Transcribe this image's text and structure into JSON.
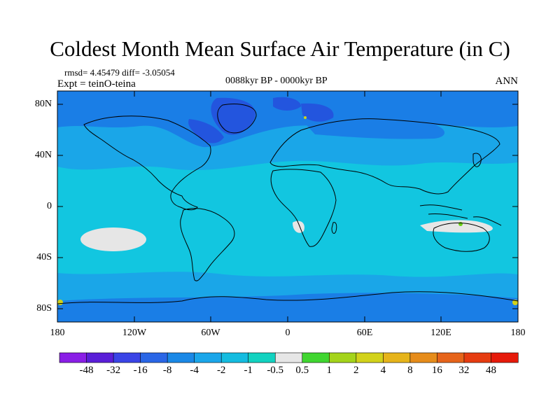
{
  "title": "Coldest Month Mean Surface Air Temperature (in C)",
  "stats": "rmsd= 4.45479 diff= -3.05054",
  "experiment": "Expt = teinO-teina",
  "period": "0088kyr BP - 0000kyr BP",
  "season": "ANN",
  "map": {
    "lat_ticks": [
      "80N",
      "40N",
      "0",
      "40S",
      "80S"
    ],
    "lon_ticks": [
      "180",
      "120W",
      "60W",
      "0",
      "60E",
      "120E",
      "180"
    ],
    "colors": {
      "ocean_base": "#12c6e0",
      "cool_band": "#1aa6e8",
      "cold_region": "#1a7ee6",
      "very_cold": "#2355de",
      "near_zero": "#e6e6e6",
      "warm": "#6ad014",
      "coast": "#000000"
    }
  },
  "colorbar": {
    "labels": [
      "-48",
      "-32",
      "-16",
      "-8",
      "-4",
      "-2",
      "-1",
      "-0.5",
      "0.5",
      "1",
      "2",
      "4",
      "8",
      "16",
      "32",
      "48"
    ],
    "colors": [
      "#8a1ee6",
      "#5a1ed8",
      "#3a44e6",
      "#2a66e6",
      "#1a88e6",
      "#1aa6ea",
      "#14bce0",
      "#12d2c0",
      "#e6e6e6",
      "#40d630",
      "#a4d41a",
      "#d2d21a",
      "#e6b41a",
      "#e68c1a",
      "#e6641a",
      "#e63c10",
      "#e61a0a"
    ]
  }
}
